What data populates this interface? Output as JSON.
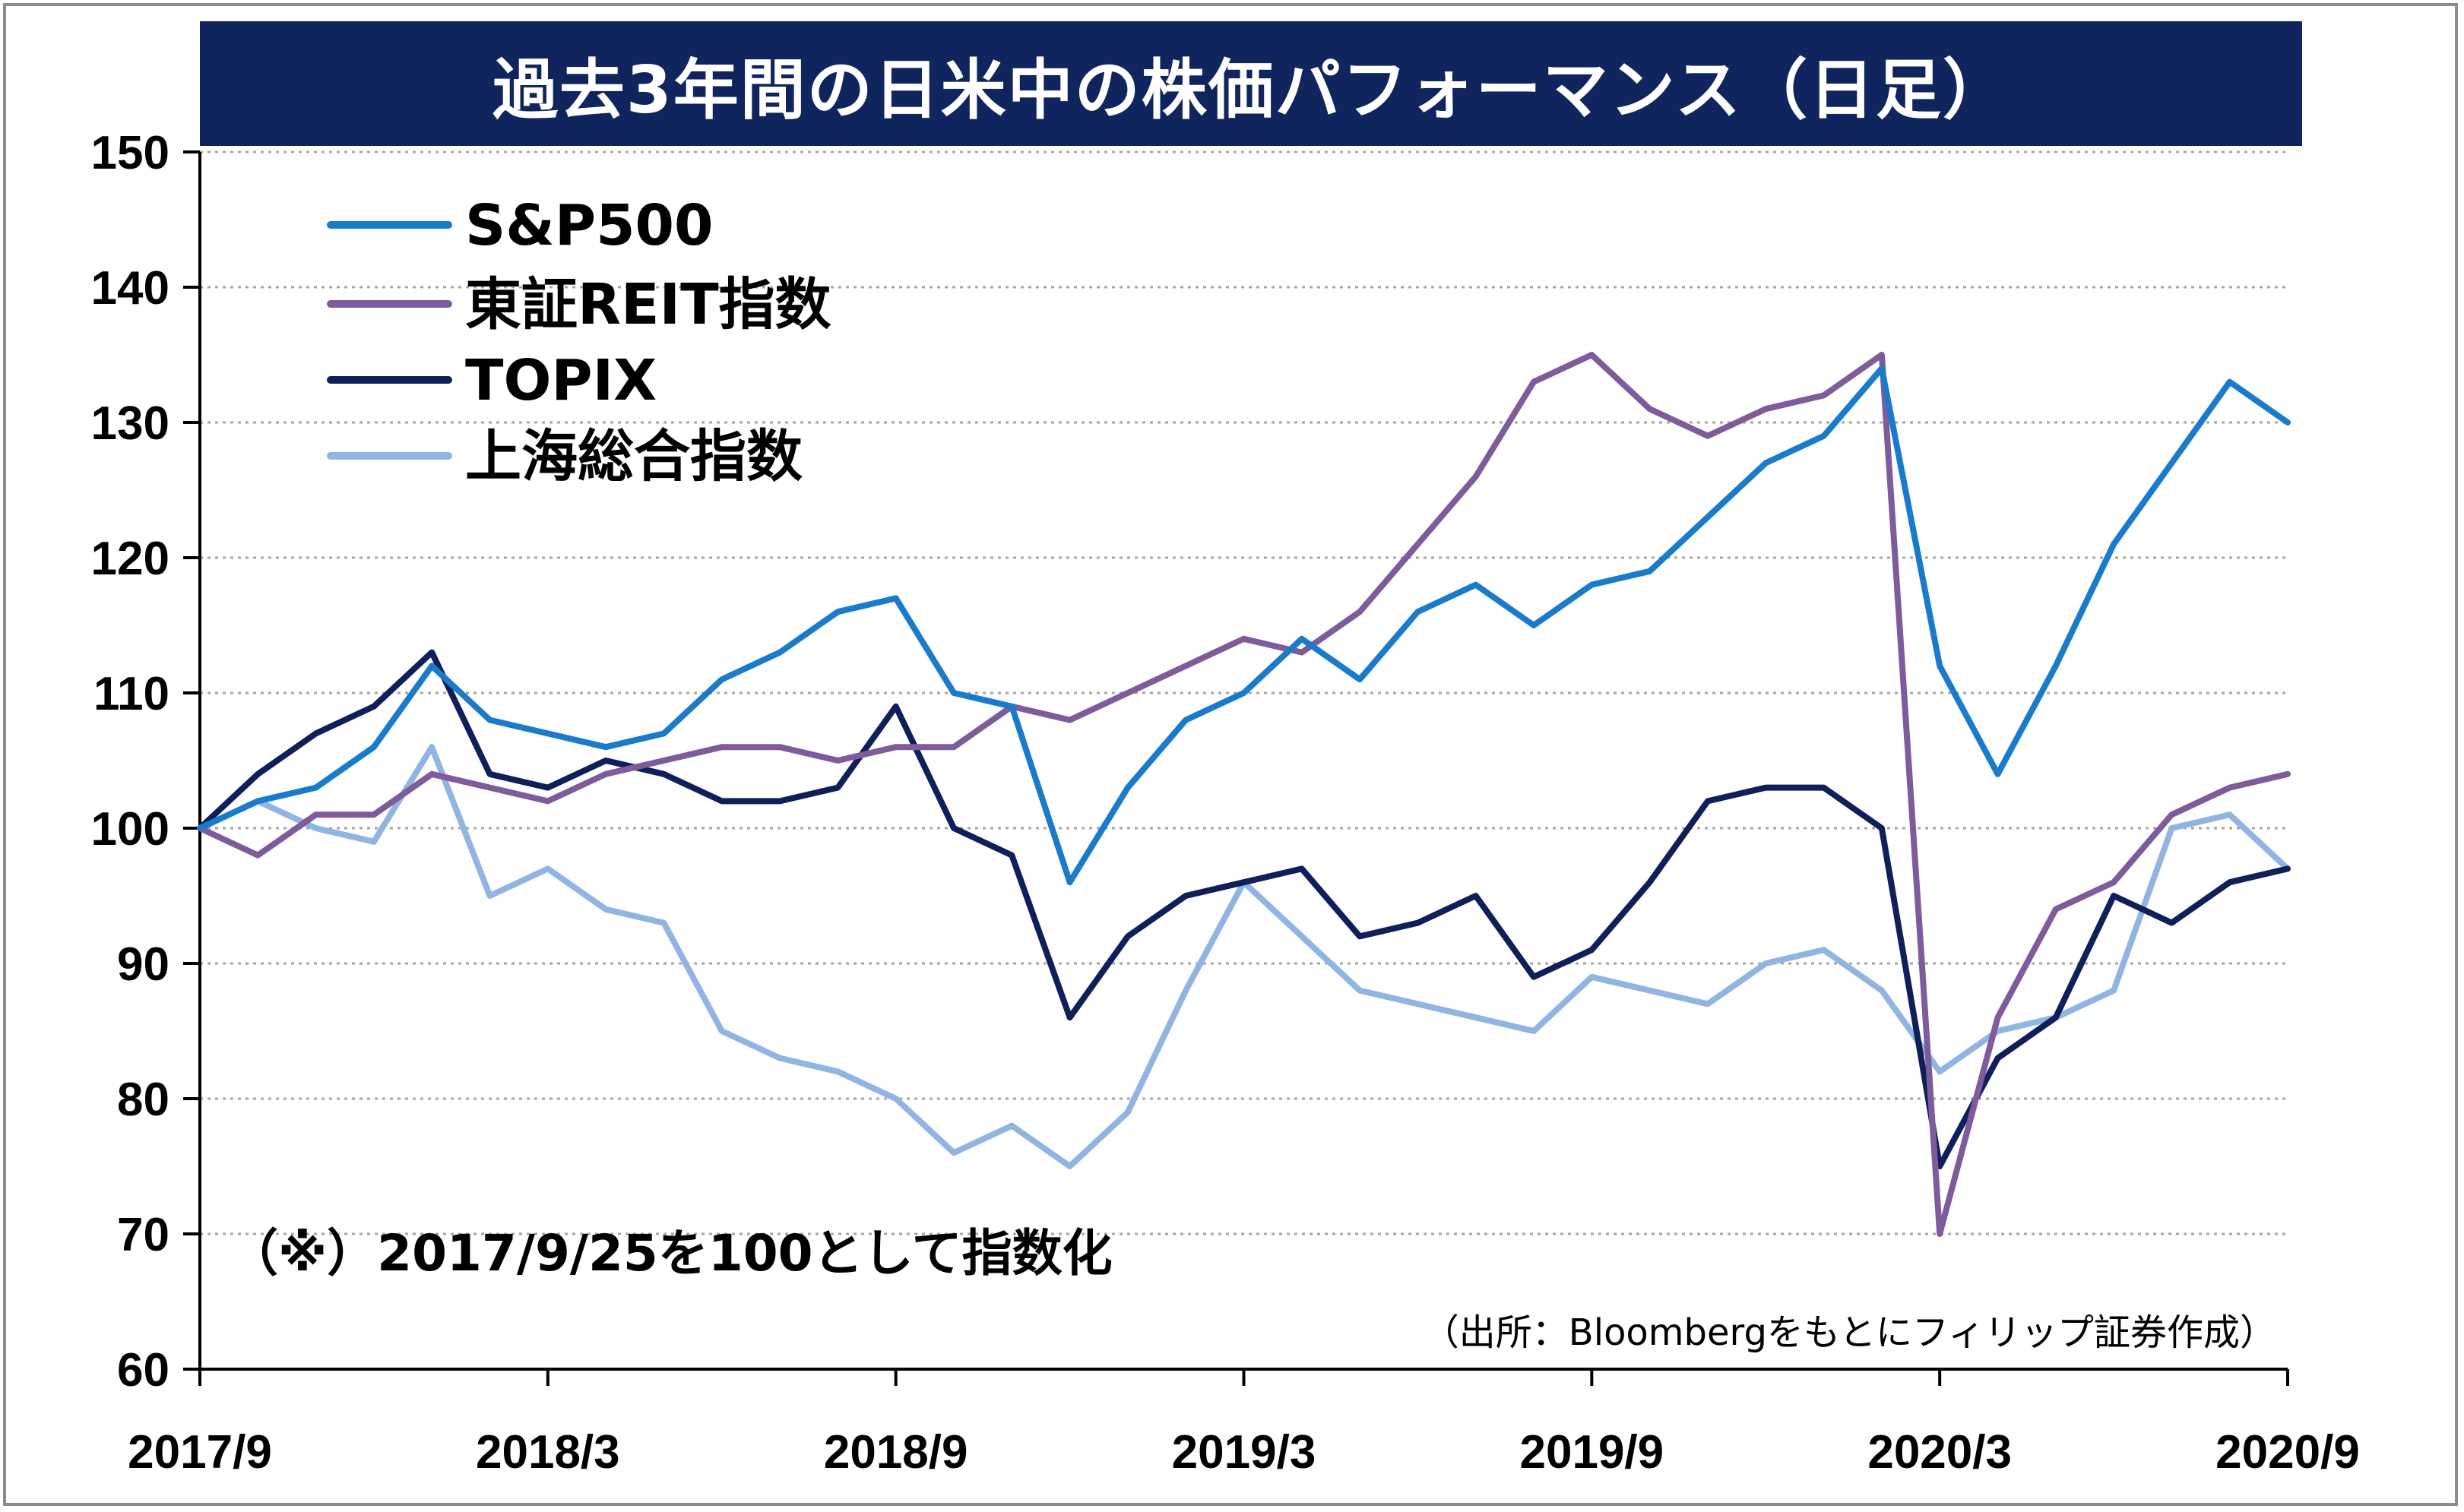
{
  "chart_data": {
    "type": "line",
    "title": "過去3年間の日米中の株価パフォーマンス（日足）",
    "note": "（※）2017/9/25を100として指数化",
    "source": "（出所：Bloombergをもとにフィリップ証券作成）",
    "xlabel": "",
    "ylabel": "",
    "ylim": [
      60,
      150
    ],
    "yticks": [
      60,
      70,
      80,
      90,
      100,
      110,
      120,
      130,
      140,
      150
    ],
    "xtick_labels": [
      "2017/9",
      "2018/3",
      "2018/9",
      "2019/3",
      "2019/9",
      "2020/3",
      "2020/9"
    ],
    "x_range": [
      "2017/9",
      "2020/9"
    ],
    "grid": true,
    "legend_position": "top-left",
    "series": [
      {
        "name": "S&P500",
        "color": "#1a7bcb",
        "x": [
          "2017/9",
          "2017/10",
          "2017/11",
          "2017/12",
          "2018/1",
          "2018/2",
          "2018/3",
          "2018/4",
          "2018/5",
          "2018/6",
          "2018/7",
          "2018/8",
          "2018/9",
          "2018/10",
          "2018/11",
          "2018/12",
          "2019/1",
          "2019/2",
          "2019/3",
          "2019/4",
          "2019/5",
          "2019/6",
          "2019/7",
          "2019/8",
          "2019/9",
          "2019/10",
          "2019/11",
          "2019/12",
          "2020/1",
          "2020/2",
          "2020/3",
          "2020/4",
          "2020/5",
          "2020/6",
          "2020/7",
          "2020/8",
          "2020/9"
        ],
        "values": [
          100,
          102,
          103,
          106,
          112,
          108,
          107,
          106,
          107,
          111,
          113,
          116,
          117,
          110,
          109,
          96,
          103,
          108,
          110,
          114,
          111,
          116,
          118,
          115,
          118,
          119,
          123,
          127,
          129,
          134,
          112,
          104,
          112,
          121,
          127,
          133,
          130
        ]
      },
      {
        "name": "東証REIT指数",
        "color": "#7e5c9c",
        "x": [
          "2017/9",
          "2017/10",
          "2017/11",
          "2017/12",
          "2018/1",
          "2018/2",
          "2018/3",
          "2018/4",
          "2018/5",
          "2018/6",
          "2018/7",
          "2018/8",
          "2018/9",
          "2018/10",
          "2018/11",
          "2018/12",
          "2019/1",
          "2019/2",
          "2019/3",
          "2019/4",
          "2019/5",
          "2019/6",
          "2019/7",
          "2019/8",
          "2019/9",
          "2019/10",
          "2019/11",
          "2019/12",
          "2020/1",
          "2020/2",
          "2020/3",
          "2020/4",
          "2020/5",
          "2020/6",
          "2020/7",
          "2020/8",
          "2020/9"
        ],
        "values": [
          100,
          98,
          101,
          101,
          104,
          103,
          102,
          104,
          105,
          106,
          106,
          105,
          106,
          106,
          109,
          108,
          110,
          112,
          114,
          113,
          116,
          121,
          126,
          133,
          135,
          131,
          129,
          131,
          132,
          135,
          70,
          86,
          94,
          96,
          101,
          103,
          104
        ]
      },
      {
        "name": "TOPIX",
        "color": "#0f1f5a",
        "x": [
          "2017/9",
          "2017/10",
          "2017/11",
          "2017/12",
          "2018/1",
          "2018/2",
          "2018/3",
          "2018/4",
          "2018/5",
          "2018/6",
          "2018/7",
          "2018/8",
          "2018/9",
          "2018/10",
          "2018/11",
          "2018/12",
          "2019/1",
          "2019/2",
          "2019/3",
          "2019/4",
          "2019/5",
          "2019/6",
          "2019/7",
          "2019/8",
          "2019/9",
          "2019/10",
          "2019/11",
          "2019/12",
          "2020/1",
          "2020/2",
          "2020/3",
          "2020/4",
          "2020/5",
          "2020/6",
          "2020/7",
          "2020/8",
          "2020/9"
        ],
        "values": [
          100,
          104,
          107,
          109,
          113,
          104,
          103,
          105,
          104,
          102,
          102,
          103,
          109,
          100,
          98,
          86,
          92,
          95,
          96,
          97,
          92,
          93,
          95,
          89,
          91,
          96,
          102,
          103,
          103,
          100,
          75,
          83,
          86,
          95,
          93,
          96,
          97
        ]
      },
      {
        "name": "上海総合指数",
        "color": "#91b5e2",
        "x": [
          "2017/9",
          "2017/10",
          "2017/11",
          "2017/12",
          "2018/1",
          "2018/2",
          "2018/3",
          "2018/4",
          "2018/5",
          "2018/6",
          "2018/7",
          "2018/8",
          "2018/9",
          "2018/10",
          "2018/11",
          "2018/12",
          "2019/1",
          "2019/2",
          "2019/3",
          "2019/4",
          "2019/5",
          "2019/6",
          "2019/7",
          "2019/8",
          "2019/9",
          "2019/10",
          "2019/11",
          "2019/12",
          "2020/1",
          "2020/2",
          "2020/3",
          "2020/4",
          "2020/5",
          "2020/6",
          "2020/7",
          "2020/8",
          "2020/9"
        ],
        "values": [
          100,
          102,
          100,
          99,
          106,
          95,
          97,
          94,
          93,
          85,
          83,
          82,
          80,
          76,
          78,
          75,
          79,
          88,
          96,
          92,
          88,
          87,
          86,
          85,
          89,
          88,
          87,
          90,
          91,
          88,
          82,
          85,
          86,
          88,
          100,
          101,
          97
        ]
      }
    ]
  }
}
